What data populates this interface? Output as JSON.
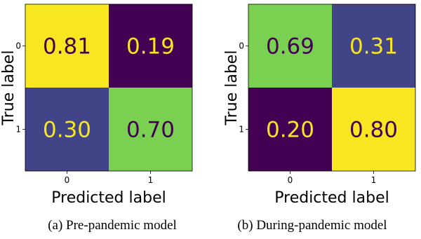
{
  "chart_data": [
    {
      "type": "heatmap",
      "caption": "(a) Pre-pandemic model",
      "xlabel": "Predicted label",
      "ylabel": "True label",
      "x_ticks": [
        "0",
        "1"
      ],
      "y_ticks": [
        "0",
        "1"
      ],
      "values": [
        [
          0.81,
          0.19
        ],
        [
          0.3,
          0.7
        ]
      ],
      "cell_labels": [
        [
          "0.81",
          "0.19"
        ],
        [
          "0.30",
          "0.70"
        ]
      ],
      "cell_colors": [
        [
          "#f8e621",
          "#440154"
        ],
        [
          "#414487",
          "#7ad151"
        ]
      ],
      "text_colors": [
        [
          "#440154",
          "#f8e621"
        ],
        [
          "#f8e621",
          "#440154"
        ]
      ]
    },
    {
      "type": "heatmap",
      "caption": "(b) During-pandemic model",
      "xlabel": "Predicted label",
      "ylabel": "True label",
      "x_ticks": [
        "0",
        "1"
      ],
      "y_ticks": [
        "0",
        "1"
      ],
      "values": [
        [
          0.69,
          0.31
        ],
        [
          0.2,
          0.8
        ]
      ],
      "cell_labels": [
        [
          "0.69",
          "0.31"
        ],
        [
          "0.20",
          "0.80"
        ]
      ],
      "cell_colors": [
        [
          "#7ad151",
          "#414487"
        ],
        [
          "#440154",
          "#f8e621"
        ]
      ],
      "text_colors": [
        [
          "#440154",
          "#f8e621"
        ],
        [
          "#f8e621",
          "#440154"
        ]
      ]
    }
  ]
}
